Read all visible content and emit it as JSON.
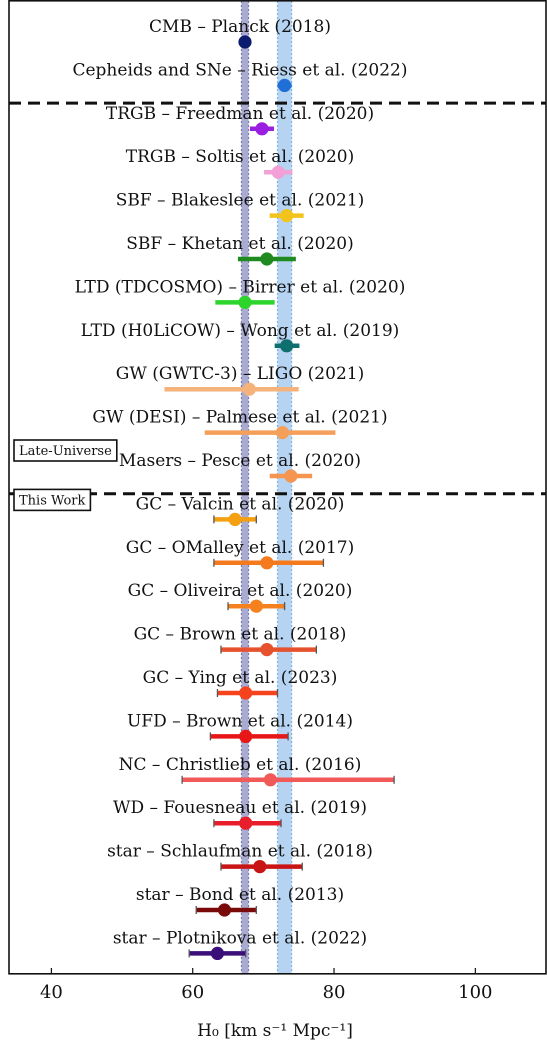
{
  "chart_data": {
    "type": "scatter",
    "title": "",
    "xlabel": "H₀ [km s⁻¹ Mpc⁻¹]",
    "ylabel": "",
    "xlim": [
      34,
      110
    ],
    "xticks": [
      40,
      60,
      80,
      100
    ],
    "grid": false,
    "legend": "none",
    "bands": [
      {
        "center": 67.4,
        "low": 66.9,
        "high": 67.9,
        "color": "#9b9cc9"
      },
      {
        "center": 73.0,
        "low": 72.0,
        "high": 74.0,
        "color": "#a9cdef"
      }
    ],
    "groups": [
      {
        "label": "",
        "rows": [
          0,
          1
        ]
      },
      {
        "label": "Late-Universe",
        "rows": [
          2,
          3,
          4,
          5,
          6,
          7,
          8,
          9,
          10
        ]
      },
      {
        "label": "This Work",
        "rows": [
          11,
          12,
          13,
          14,
          15,
          16,
          17,
          18,
          19,
          20,
          21
        ]
      }
    ],
    "points": [
      {
        "label": "CMB – Planck (2018)",
        "value": 67.4,
        "low": 66.9,
        "high": 67.9,
        "color": "#0b1b6e",
        "caps": false
      },
      {
        "label": "Cepheids and SNe – Riess et al. (2022)",
        "value": 73.0,
        "low": 72.0,
        "high": 74.0,
        "color": "#1f6fd6",
        "caps": false
      },
      {
        "label": "TRGB – Freedman et al. (2020)",
        "value": 69.8,
        "low": 68.1,
        "high": 71.5,
        "color": "#9a1fe0",
        "caps": false
      },
      {
        "label": "TRGB – Soltis et al. (2020)",
        "value": 72.1,
        "low": 70.1,
        "high": 74.1,
        "color": "#f2a0d5",
        "caps": false
      },
      {
        "label": "SBF – Blakeslee et al. (2021)",
        "value": 73.3,
        "low": 70.9,
        "high": 75.7,
        "color": "#f2c31b",
        "caps": false
      },
      {
        "label": "SBF – Khetan et al. (2020)",
        "value": 70.5,
        "low": 66.4,
        "high": 74.6,
        "color": "#1f8a1f",
        "caps": false
      },
      {
        "label": "LTD (TDCOSMO) – Birrer et al. (2020)",
        "value": 67.4,
        "low": 63.2,
        "high": 71.6,
        "color": "#2cd42c",
        "caps": false
      },
      {
        "label": "LTD (H0LiCOW) – Wong et al. (2019)",
        "value": 73.3,
        "low": 71.6,
        "high": 75.1,
        "color": "#0f6f6f",
        "caps": false
      },
      {
        "label": "GW (GWTC-3) – LIGO (2021)",
        "value": 68.0,
        "low": 56.0,
        "high": 75.0,
        "color": "#f5b27a",
        "caps": false
      },
      {
        "label": "GW (DESI) – Palmese et al. (2021)",
        "value": 72.7,
        "low": 61.7,
        "high": 80.2,
        "color": "#f5a05a",
        "caps": false
      },
      {
        "label": "Masers – Pesce et al. (2020)",
        "value": 73.9,
        "low": 70.9,
        "high": 76.9,
        "color": "#f59550",
        "caps": false
      },
      {
        "label": "GC – Valcin et al. (2020)",
        "value": 66.0,
        "low": 63.0,
        "high": 69.0,
        "color": "#f5a010",
        "caps": true
      },
      {
        "label": "GC – OMalley et al. (2017)",
        "value": 70.5,
        "low": 63.0,
        "high": 78.5,
        "color": "#f57a1e",
        "caps": true
      },
      {
        "label": "GC – Oliveira et al. (2020)",
        "value": 69.0,
        "low": 65.0,
        "high": 73.0,
        "color": "#f5801e",
        "caps": true
      },
      {
        "label": "GC – Brown et al. (2018)",
        "value": 70.5,
        "low": 64.0,
        "high": 77.5,
        "color": "#e6512e",
        "caps": true
      },
      {
        "label": "GC – Ying et al. (2023)",
        "value": 67.5,
        "low": 63.5,
        "high": 72.0,
        "color": "#f5431e",
        "caps": true
      },
      {
        "label": "UFD – Brown et al. (2014)",
        "value": 67.5,
        "low": 62.5,
        "high": 73.5,
        "color": "#e81717",
        "caps": true
      },
      {
        "label": "NC – Christlieb et al. (2016)",
        "value": 71.0,
        "low": 58.5,
        "high": 88.5,
        "color": "#f25a5a",
        "caps": true
      },
      {
        "label": "WD – Fouesneau et al. (2019)",
        "value": 67.5,
        "low": 63.0,
        "high": 72.5,
        "color": "#e81f2a",
        "caps": true
      },
      {
        "label": "star – Schlaufman et al. (2018)",
        "value": 69.5,
        "low": 64.0,
        "high": 75.5,
        "color": "#c81414",
        "caps": true
      },
      {
        "label": "star – Bond et al. (2013)",
        "value": 64.5,
        "low": 60.5,
        "high": 69.0,
        "color": "#7a0a0a",
        "caps": true
      },
      {
        "label": "star – Plotnikova et al. (2022)",
        "value": 63.5,
        "low": 59.5,
        "high": 67.5,
        "color": "#3b0f7a",
        "caps": true
      }
    ]
  }
}
